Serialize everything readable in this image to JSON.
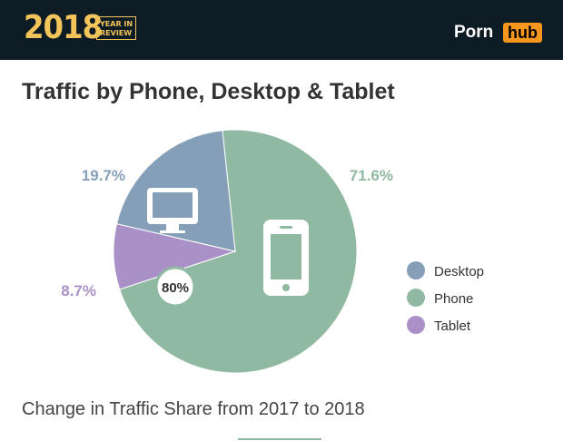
{
  "header": {
    "year": "2018",
    "year_in_review_line1": "YEAR IN",
    "year_in_review_line2": "REVIEW",
    "logo_part1": "Porn",
    "logo_part2": "hub"
  },
  "chart_data": {
    "type": "pie",
    "title": "Traffic by Phone, Desktop & Tablet",
    "slices": [
      {
        "label": "Phone",
        "value": 71.6,
        "value_label": "71.6%",
        "color": "#8fb9a0",
        "icon": "smartphone-icon"
      },
      {
        "label": "Desktop",
        "value": 19.7,
        "value_label": "19.7%",
        "color": "#869fb8",
        "icon": "desktop-monitor-icon"
      },
      {
        "label": "Tablet",
        "value": 8.7,
        "value_label": "8.7%",
        "color": "#a991c7",
        "icon": ""
      }
    ],
    "legend": {
      "position": "right",
      "entries": [
        "Desktop",
        "Phone",
        "Tablet"
      ]
    },
    "badge": "80%"
  },
  "footer": {
    "change_text": "Change in Traffic Share from 2017 to 2018"
  }
}
